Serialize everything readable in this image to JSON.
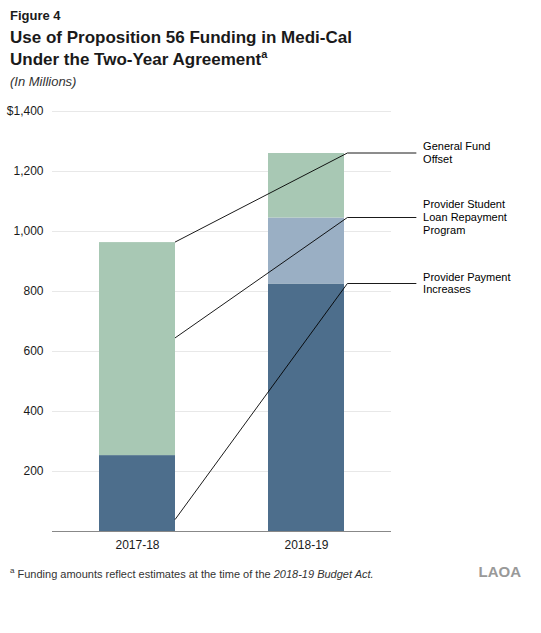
{
  "chart_data": {
    "type": "bar",
    "stacked": true,
    "figure_label": "Figure 4",
    "title": "Use of Proposition 56 Funding in Medi-Cal\nUnder the Two-Year Agreement",
    "title_superscript": "a",
    "subtitle": "(In Millions)",
    "categories": [
      "2017-18",
      "2018-19"
    ],
    "series": [
      {
        "name": "Provider Payment\nIncreases",
        "color": "#4d6e8c",
        "values": [
          253,
          825
        ]
      },
      {
        "name": "Provider Student\nLoan Repayment\nProgram",
        "color": "#9aafc4",
        "values": [
          0,
          220
        ]
      },
      {
        "name": "General Fund\nOffset",
        "color": "#a8c8b4",
        "values": [
          710,
          215
        ]
      }
    ],
    "ylim": [
      0,
      1400
    ],
    "yticks": [
      {
        "value": 0,
        "label": null
      },
      200,
      400,
      600,
      800,
      {
        "value": 1000,
        "label": "1,000"
      },
      {
        "value": 1200,
        "label": "1,200"
      },
      {
        "value": 1400,
        "label": "$1,400"
      }
    ],
    "grid": true,
    "footnote": {
      "marker": "a",
      "text": "Funding amounts reflect estimates at the time of the ",
      "italic": "2018-19 Budget Act."
    },
    "watermark": "LAOA"
  }
}
